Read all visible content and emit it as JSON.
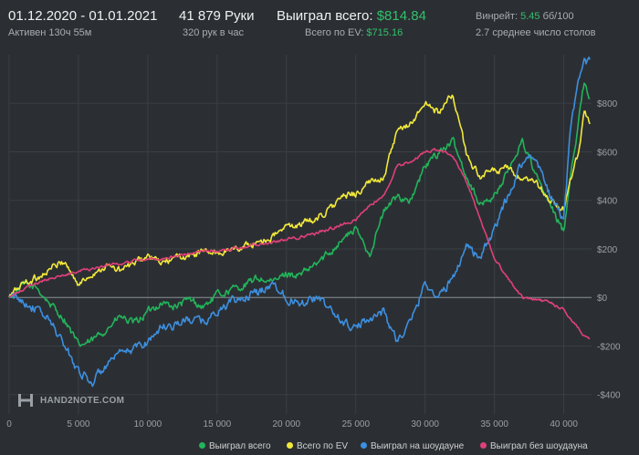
{
  "header": {
    "period": "01.12.2020 - 01.01.2021",
    "active": "Активен 130ч 55м",
    "hands": "41 879 Руки",
    "hands_per_hour": "320 рук в час",
    "won_label": "Выиграл всего:",
    "won_value": "$814.84",
    "ev_label": "Всего по EV:",
    "ev_value": "$715.16",
    "winrate_label": "Винрейт:",
    "winrate_value": "5.45",
    "winrate_unit": "бб/100",
    "tables": "2.7 среднее число столов"
  },
  "logo": {
    "text": "HAND2NOTE.COM",
    "icon": "hand2note-logo-icon"
  },
  "colors": {
    "background": "#2b2f33",
    "grid": "#3a3f44",
    "zero_line": "#8a8f94",
    "won": "#22b45a",
    "ev": "#f2e83a",
    "showdown": "#3d8fe0",
    "non_showdown": "#e0407a",
    "accent_green": "#31c06a"
  },
  "chart_data": {
    "type": "line",
    "xlim": [
      0,
      42000
    ],
    "ylim": [
      -480,
      1000
    ],
    "x_ticks": [
      0,
      5000,
      10000,
      15000,
      20000,
      25000,
      30000,
      35000,
      40000
    ],
    "x_tick_labels": [
      "0",
      "5 000",
      "10 000",
      "15 000",
      "20 000",
      "25 000",
      "30 000",
      "35 000",
      "40 000"
    ],
    "y_ticks": [
      -400,
      -200,
      0,
      200,
      400,
      600,
      800
    ],
    "y_tick_labels": [
      "-$400",
      "-$200",
      "$0",
      "$200",
      "$400",
      "$600",
      "$800"
    ],
    "grid": true,
    "legend_position": "bottom",
    "series": [
      {
        "name": "Выиграл всего",
        "key": "won",
        "x": [
          0,
          1000,
          2000,
          3000,
          4000,
          5000,
          6000,
          7000,
          8000,
          9000,
          10000,
          11000,
          12000,
          13000,
          14000,
          15000,
          16000,
          17000,
          18000,
          19000,
          20000,
          21000,
          22000,
          23000,
          24000,
          25000,
          26000,
          27000,
          28000,
          29000,
          30000,
          31000,
          32000,
          33000,
          34000,
          35000,
          36000,
          37000,
          38000,
          39000,
          40000,
          40500,
          41000,
          41500,
          41879
        ],
        "y": [
          0,
          50,
          40,
          -30,
          -90,
          -200,
          -180,
          -130,
          -80,
          -110,
          -60,
          -20,
          -40,
          -10,
          -40,
          10,
          30,
          50,
          80,
          60,
          100,
          90,
          130,
          180,
          240,
          280,
          180,
          350,
          420,
          400,
          540,
          600,
          640,
          500,
          380,
          420,
          520,
          650,
          500,
          380,
          270,
          520,
          700,
          900,
          820
        ]
      },
      {
        "name": "Всего по EV",
        "key": "ev",
        "x": [
          0,
          1000,
          2000,
          3000,
          4000,
          5000,
          6000,
          7000,
          8000,
          9000,
          10000,
          11000,
          12000,
          13000,
          14000,
          15000,
          16000,
          17000,
          18000,
          19000,
          20000,
          21000,
          22000,
          23000,
          24000,
          25000,
          26000,
          27000,
          28000,
          29000,
          30000,
          31000,
          32000,
          33000,
          34000,
          35000,
          36000,
          37000,
          38000,
          39000,
          40000,
          40500,
          41000,
          41500,
          41879
        ],
        "y": [
          0,
          60,
          80,
          120,
          150,
          50,
          100,
          130,
          110,
          140,
          170,
          140,
          160,
          170,
          190,
          180,
          200,
          210,
          230,
          250,
          290,
          300,
          320,
          360,
          410,
          430,
          470,
          500,
          680,
          720,
          800,
          760,
          840,
          580,
          500,
          520,
          530,
          480,
          470,
          400,
          360,
          480,
          580,
          780,
          715
        ]
      },
      {
        "name": "Выиграл на шоудауне",
        "key": "showdown",
        "x": [
          0,
          1000,
          2000,
          3000,
          4000,
          5000,
          6000,
          7000,
          8000,
          9000,
          10000,
          11000,
          12000,
          13000,
          14000,
          15000,
          16000,
          17000,
          18000,
          19000,
          20000,
          21000,
          22000,
          23000,
          24000,
          25000,
          26000,
          27000,
          28000,
          29000,
          30000,
          31000,
          32000,
          33000,
          34000,
          35000,
          36000,
          37000,
          38000,
          39000,
          40000,
          40500,
          41000,
          41500,
          41879
        ],
        "y": [
          0,
          -10,
          -50,
          -100,
          -200,
          -300,
          -350,
          -280,
          -240,
          -210,
          -180,
          -120,
          -110,
          -90,
          -100,
          -60,
          -20,
          0,
          20,
          60,
          0,
          -20,
          0,
          -40,
          -100,
          -130,
          -80,
          -60,
          -180,
          -100,
          60,
          0,
          80,
          220,
          160,
          280,
          420,
          560,
          580,
          420,
          320,
          700,
          860,
          960,
          980
        ]
      },
      {
        "name": "Выиграл без шоудауна",
        "key": "non_showdown",
        "x": [
          0,
          1000,
          2000,
          3000,
          4000,
          5000,
          6000,
          7000,
          8000,
          9000,
          10000,
          11000,
          12000,
          13000,
          14000,
          15000,
          16000,
          17000,
          18000,
          19000,
          20000,
          21000,
          22000,
          23000,
          24000,
          25000,
          26000,
          27000,
          28000,
          29000,
          30000,
          31000,
          32000,
          33000,
          34000,
          35000,
          36000,
          37000,
          38000,
          39000,
          40000,
          40500,
          41000,
          41500,
          41879
        ],
        "y": [
          0,
          30,
          60,
          80,
          90,
          110,
          120,
          130,
          140,
          150,
          160,
          160,
          170,
          180,
          190,
          190,
          200,
          210,
          220,
          230,
          240,
          250,
          260,
          280,
          300,
          320,
          380,
          420,
          540,
          560,
          600,
          610,
          580,
          480,
          320,
          160,
          80,
          0,
          -10,
          -20,
          -50,
          -90,
          -120,
          -160,
          -170
        ]
      }
    ]
  }
}
